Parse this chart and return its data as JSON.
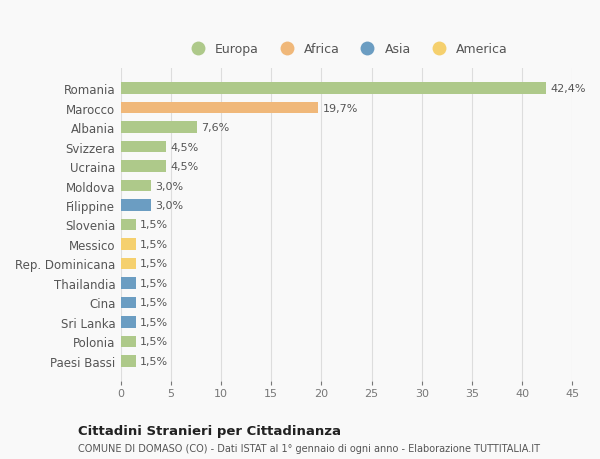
{
  "categories": [
    "Romania",
    "Marocco",
    "Albania",
    "Svizzera",
    "Ucraina",
    "Moldova",
    "Filippine",
    "Slovenia",
    "Messico",
    "Rep. Dominicana",
    "Thailandia",
    "Cina",
    "Sri Lanka",
    "Polonia",
    "Paesi Bassi"
  ],
  "values": [
    42.4,
    19.7,
    7.6,
    4.5,
    4.5,
    3.0,
    3.0,
    1.5,
    1.5,
    1.5,
    1.5,
    1.5,
    1.5,
    1.5,
    1.5
  ],
  "labels": [
    "42,4%",
    "19,7%",
    "7,6%",
    "4,5%",
    "4,5%",
    "3,0%",
    "3,0%",
    "1,5%",
    "1,5%",
    "1,5%",
    "1,5%",
    "1,5%",
    "1,5%",
    "1,5%",
    "1,5%"
  ],
  "colors": [
    "#aec98a",
    "#f0b87a",
    "#aec98a",
    "#aec98a",
    "#aec98a",
    "#aec98a",
    "#6b9dc2",
    "#aec98a",
    "#f5d06e",
    "#f5d06e",
    "#6b9dc2",
    "#6b9dc2",
    "#6b9dc2",
    "#aec98a",
    "#aec98a"
  ],
  "legend_labels": [
    "Europa",
    "Africa",
    "Asia",
    "America"
  ],
  "legend_colors": [
    "#aec98a",
    "#f0b87a",
    "#6b9dc2",
    "#f5d06e"
  ],
  "xlim": [
    0,
    45
  ],
  "xticks": [
    0,
    5,
    10,
    15,
    20,
    25,
    30,
    35,
    40,
    45
  ],
  "title": "Cittadini Stranieri per Cittadinanza",
  "subtitle": "COMUNE DI DOMASO (CO) - Dati ISTAT al 1° gennaio di ogni anno - Elaborazione TUTTITALIA.IT",
  "background_color": "#f9f9f9",
  "grid_color": "#dddddd",
  "label_color": "#777777",
  "text_color": "#555555"
}
